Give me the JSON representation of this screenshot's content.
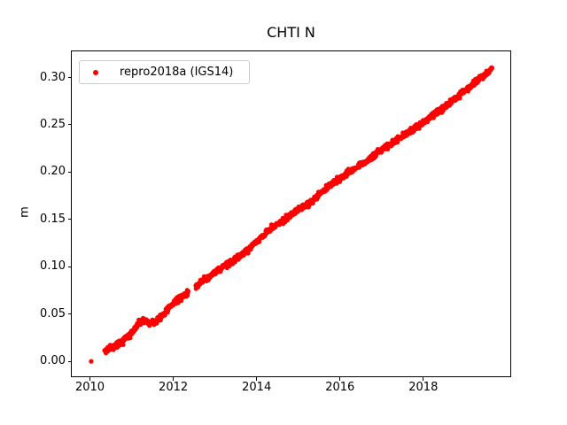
{
  "figure": {
    "background": "#ffffff",
    "spine_color": "#000000"
  },
  "chart_data": {
    "type": "scatter",
    "title": "CHTI N",
    "xlabel": "",
    "ylabel": "m",
    "xlim": [
      2009.553,
      2020.119
    ],
    "ylim": [
      -0.0163,
      0.3286
    ],
    "grid": false,
    "xticks": [
      {
        "value": 2010,
        "label": "2010"
      },
      {
        "value": 2012,
        "label": "2012"
      },
      {
        "value": 2014,
        "label": "2014"
      },
      {
        "value": 2016,
        "label": "2016"
      },
      {
        "value": 2018,
        "label": "2018"
      }
    ],
    "yticks": [
      {
        "value": 0.0,
        "label": "0.00"
      },
      {
        "value": 0.05,
        "label": "0.05"
      },
      {
        "value": 0.1,
        "label": "0.10"
      },
      {
        "value": 0.15,
        "label": "0.15"
      },
      {
        "value": 0.2,
        "label": "0.20"
      },
      {
        "value": 0.25,
        "label": "0.25"
      },
      {
        "value": 0.3,
        "label": "0.30"
      }
    ],
    "legend": {
      "position": "upper left",
      "entries": [
        {
          "label": "repro2018a (IGS14)",
          "color": "#ff0000",
          "marker": "circle"
        }
      ]
    },
    "series": [
      {
        "name": "repro2018a (IGS14)",
        "color": "#ff0000",
        "marker_radius_px": 2.6,
        "noise_sigma_m": 0.0015,
        "sample_step_years": 0.008,
        "seed": 42,
        "isolated_points": [
          [
            2010.04,
            0.0
          ]
        ],
        "segments": [
          [
            [
              2010.36,
              0.011
            ],
            [
              2010.55,
              0.0145
            ],
            [
              2010.7,
              0.018
            ],
            [
              2010.85,
              0.023
            ],
            [
              2011.0,
              0.0295
            ],
            [
              2011.15,
              0.0385
            ],
            [
              2011.28,
              0.0435
            ],
            [
              2011.42,
              0.0405
            ],
            [
              2011.58,
              0.042
            ],
            [
              2011.75,
              0.048
            ],
            [
              2011.9,
              0.056
            ],
            [
              2012.05,
              0.0625
            ],
            [
              2012.2,
              0.068
            ],
            [
              2012.37,
              0.0725
            ]
          ],
          [
            [
              2012.55,
              0.0795
            ],
            [
              2012.75,
              0.086
            ],
            [
              2013.0,
              0.0935
            ],
            [
              2013.25,
              0.101
            ],
            [
              2013.5,
              0.108
            ],
            [
              2013.75,
              0.116
            ],
            [
              2014.0,
              0.1255
            ],
            [
              2014.25,
              0.137
            ],
            [
              2014.5,
              0.145
            ],
            [
              2014.75,
              0.152
            ],
            [
              2015.0,
              0.16
            ],
            [
              2015.25,
              0.166
            ],
            [
              2015.5,
              0.176
            ],
            [
              2015.75,
              0.1855
            ],
            [
              2016.0,
              0.193
            ],
            [
              2016.25,
              0.2
            ],
            [
              2016.5,
              0.2075
            ],
            [
              2016.75,
              0.215
            ],
            [
              2017.0,
              0.2235
            ],
            [
              2017.25,
              0.23
            ],
            [
              2017.5,
              0.2375
            ],
            [
              2017.75,
              0.2445
            ],
            [
              2018.0,
              0.2525
            ],
            [
              2018.25,
              0.26
            ],
            [
              2018.5,
              0.268
            ],
            [
              2018.75,
              0.2765
            ],
            [
              2019.0,
              0.2855
            ],
            [
              2019.25,
              0.2945
            ],
            [
              2019.45,
              0.3015
            ],
            [
              2019.6,
              0.308
            ],
            [
              2019.67,
              0.311
            ]
          ]
        ]
      }
    ]
  }
}
